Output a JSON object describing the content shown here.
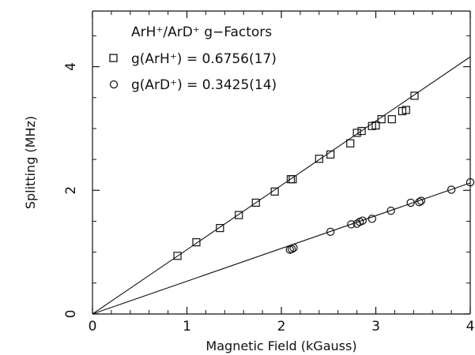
{
  "chart_data": {
    "type": "scatter",
    "xlabel": "Magnetic Field (kGauss)",
    "ylabel": "Splitting (MHz)",
    "xlim": [
      0,
      4
    ],
    "ylim": [
      0,
      4.9
    ],
    "xticks": [
      "0",
      "1",
      "2",
      "3",
      "4"
    ],
    "yticks": [
      "0",
      "2",
      "4"
    ],
    "grid": false,
    "legend_placement": "top-left",
    "legend_title": "ArH⁺/ArD⁺ g−Factors",
    "series": [
      {
        "name": "g(ArH⁺) = 0.6756(17)",
        "marker": "square",
        "fit_slope": 1.04,
        "x": [
          0.9,
          1.1,
          1.35,
          1.55,
          1.73,
          1.93,
          2.1,
          2.12,
          2.4,
          2.52,
          2.73,
          2.8,
          2.85,
          2.96,
          3.0,
          3.06,
          3.17,
          3.28,
          3.32,
          3.41
        ],
        "y": [
          0.94,
          1.16,
          1.39,
          1.6,
          1.8,
          1.98,
          2.18,
          2.18,
          2.51,
          2.58,
          2.76,
          2.93,
          2.96,
          3.04,
          3.05,
          3.15,
          3.15,
          3.28,
          3.3,
          3.53
        ]
      },
      {
        "name": "g(ArD⁺) = 0.3425(14)",
        "marker": "circle",
        "fit_slope": 0.53,
        "x": [
          2.09,
          2.11,
          2.13,
          2.52,
          2.74,
          2.8,
          2.83,
          2.86,
          2.96,
          3.16,
          3.37,
          3.46,
          3.48,
          3.8,
          4.0
        ],
        "y": [
          1.04,
          1.05,
          1.07,
          1.33,
          1.45,
          1.46,
          1.49,
          1.51,
          1.54,
          1.67,
          1.8,
          1.81,
          1.83,
          2.01,
          2.13
        ]
      }
    ]
  }
}
